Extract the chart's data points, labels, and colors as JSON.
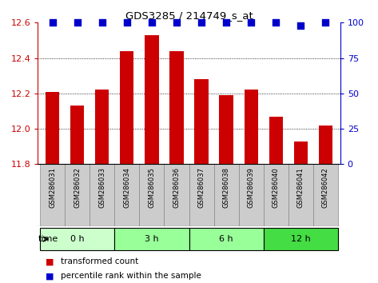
{
  "title": "GDS3285 / 214749_s_at",
  "samples": [
    "GSM286031",
    "GSM286032",
    "GSM286033",
    "GSM286034",
    "GSM286035",
    "GSM286036",
    "GSM286037",
    "GSM286038",
    "GSM286039",
    "GSM286040",
    "GSM286041",
    "GSM286042"
  ],
  "transformed_count": [
    12.21,
    12.13,
    12.22,
    12.44,
    12.53,
    12.44,
    12.28,
    12.19,
    12.22,
    12.07,
    11.93,
    12.02
  ],
  "percentile_rank": [
    100,
    100,
    100,
    100,
    100,
    100,
    100,
    100,
    100,
    100,
    98,
    100
  ],
  "ylim": [
    11.8,
    12.6
  ],
  "y2lim": [
    0,
    100
  ],
  "yticks": [
    11.8,
    12.0,
    12.2,
    12.4,
    12.6
  ],
  "y2ticks": [
    0,
    25,
    50,
    75,
    100
  ],
  "bar_color": "#cc0000",
  "dot_color": "#0000cc",
  "groups": [
    {
      "label": "0 h",
      "start": 0,
      "end": 3,
      "color": "#ccffcc"
    },
    {
      "label": "3 h",
      "start": 3,
      "end": 6,
      "color": "#99ff99"
    },
    {
      "label": "6 h",
      "start": 6,
      "end": 9,
      "color": "#99ff99"
    },
    {
      "label": "12 h",
      "start": 9,
      "end": 12,
      "color": "#44dd44"
    }
  ],
  "time_label": "time",
  "grid_color": "#000000",
  "tick_label_color_left": "#cc0000",
  "tick_label_color_right": "#0000cc",
  "bar_width": 0.55,
  "dot_size": 40,
  "sample_box_color": "#cccccc",
  "legend_red_label": "transformed count",
  "legend_blue_label": "percentile rank within the sample"
}
